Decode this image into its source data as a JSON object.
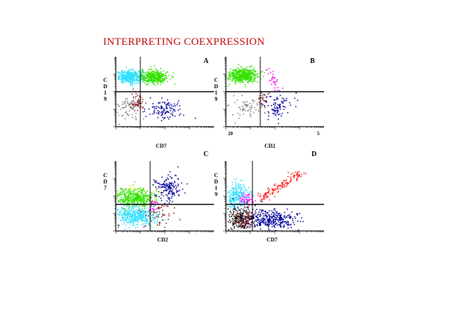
{
  "title": "INTERPRETING COEXPRESSION",
  "colors": {
    "title": "#c00000",
    "cyan": "#33e0ff",
    "green": "#33e000",
    "gray": "#808080",
    "darkred": "#8b1a1a",
    "blue": "#000099",
    "red": "#ff1a1a",
    "magenta": "#ff00ff",
    "black": "#000000",
    "yellow": "#ffff00"
  },
  "chart_data": [
    {
      "type": "scatter",
      "panel_label": "A",
      "xlabel": "CD7",
      "ylabel": [
        "C",
        "D",
        "1",
        "9"
      ],
      "scale": "log",
      "quadrant_gate": {
        "x": 0.25,
        "y": 0.5
      },
      "quadrant_labels": [],
      "populations": [
        {
          "color": "cyan",
          "cx": 0.14,
          "cy": 0.72,
          "sx": 0.07,
          "sy": 0.045,
          "n": 420
        },
        {
          "color": "green",
          "cx": 0.39,
          "cy": 0.72,
          "sx": 0.07,
          "sy": 0.05,
          "n": 360
        },
        {
          "color": "gray",
          "cx": 0.12,
          "cy": 0.28,
          "sx": 0.07,
          "sy": 0.08,
          "n": 80
        },
        {
          "color": "darkred",
          "cx": 0.22,
          "cy": 0.34,
          "sx": 0.03,
          "sy": 0.07,
          "n": 50
        },
        {
          "color": "blue",
          "cx": 0.5,
          "cy": 0.25,
          "sx": 0.09,
          "sy": 0.07,
          "n": 110
        }
      ]
    },
    {
      "type": "scatter",
      "panel_label": "B",
      "xlabel": "CD2",
      "ylabel": [
        "C",
        "D",
        "1",
        "9"
      ],
      "scale": "log",
      "quadrant_gate": {
        "x": 0.35,
        "y": 0.5
      },
      "quadrant_labels": [
        "20",
        "5"
      ],
      "populations": [
        {
          "color": "green",
          "cx": 0.16,
          "cy": 0.74,
          "sx": 0.08,
          "sy": 0.05,
          "n": 480
        },
        {
          "color": "magenta",
          "cx": 0.47,
          "cy": 0.68,
          "sx": 0.04,
          "sy": 0.09,
          "n": 30
        },
        {
          "color": "gray",
          "cx": 0.18,
          "cy": 0.28,
          "sx": 0.08,
          "sy": 0.07,
          "n": 60
        },
        {
          "color": "darkred",
          "cx": 0.37,
          "cy": 0.38,
          "sx": 0.03,
          "sy": 0.06,
          "n": 30
        },
        {
          "color": "blue",
          "cx": 0.52,
          "cy": 0.3,
          "sx": 0.07,
          "sy": 0.09,
          "n": 90
        }
      ]
    },
    {
      "type": "scatter",
      "panel_label": "C",
      "xlabel": "CD2",
      "ylabel": [
        "C",
        "D",
        "7"
      ],
      "scale": "log",
      "quadrant_gate": {
        "x": 0.35,
        "y": 0.38
      },
      "quadrant_labels": [
        "7"
      ],
      "populations": [
        {
          "color": "green",
          "cx": 0.19,
          "cy": 0.48,
          "sx": 0.1,
          "sy": 0.07,
          "n": 420
        },
        {
          "color": "cyan",
          "cx": 0.19,
          "cy": 0.22,
          "sx": 0.11,
          "sy": 0.07,
          "n": 420
        },
        {
          "color": "blue",
          "cx": 0.53,
          "cy": 0.63,
          "sx": 0.07,
          "sy": 0.09,
          "n": 150
        },
        {
          "color": "darkred",
          "cx": 0.42,
          "cy": 0.25,
          "sx": 0.08,
          "sy": 0.1,
          "n": 60
        },
        {
          "color": "magenta",
          "cx": 0.37,
          "cy": 0.38,
          "sx": 0.03,
          "sy": 0.04,
          "n": 20
        },
        {
          "color": "yellow",
          "cx": 0.25,
          "cy": 0.6,
          "sx": 0.1,
          "sy": 0.04,
          "n": 10
        }
      ]
    },
    {
      "type": "scatter",
      "panel_label": "D",
      "xlabel": "CD7",
      "ylabel": [
        "C",
        "D",
        "1",
        "9"
      ],
      "scale": "log",
      "quadrant_gate": {
        "x": 0.27,
        "y": 0.38
      },
      "quadrant_labels": [],
      "populations": [
        {
          "color": "cyan",
          "cx": 0.11,
          "cy": 0.5,
          "sx": 0.06,
          "sy": 0.1,
          "n": 260
        },
        {
          "color": "magenta",
          "cx": 0.21,
          "cy": 0.46,
          "sx": 0.04,
          "sy": 0.04,
          "n": 50
        },
        {
          "color": "red",
          "cx": 0.55,
          "cy": 0.65,
          "sx": 0.2,
          "sy": 0.17,
          "n": 140,
          "diagonal": true
        },
        {
          "color": "black",
          "cx": 0.13,
          "cy": 0.18,
          "sx": 0.07,
          "sy": 0.09,
          "n": 180
        },
        {
          "color": "darkred",
          "cx": 0.17,
          "cy": 0.17,
          "sx": 0.06,
          "sy": 0.08,
          "n": 90
        },
        {
          "color": "blue",
          "cx": 0.45,
          "cy": 0.17,
          "sx": 0.13,
          "sy": 0.07,
          "n": 320
        }
      ]
    }
  ]
}
